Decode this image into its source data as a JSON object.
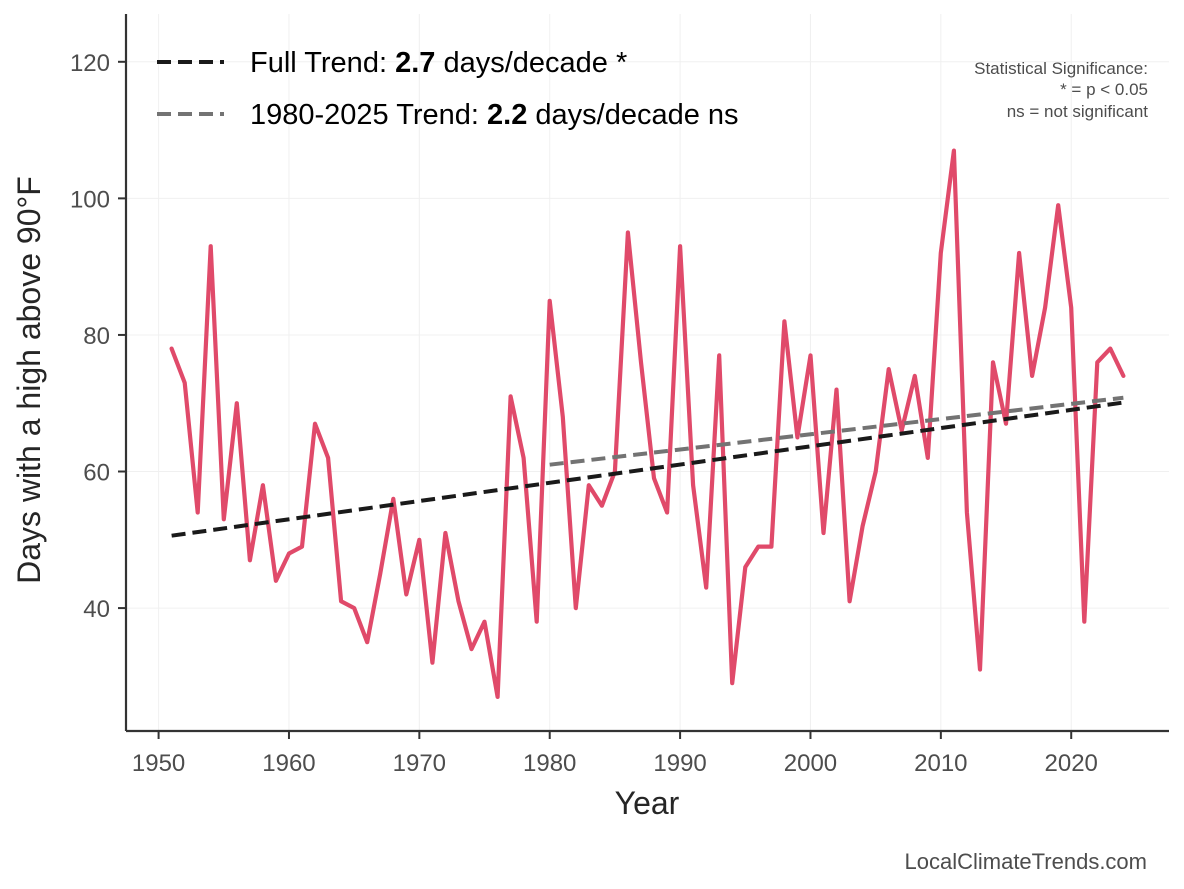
{
  "chart_data": {
    "type": "line",
    "xlabel": "Year",
    "ylabel": "Days with a high above 90°F",
    "xlim": [
      1947.5,
      2027.5
    ],
    "ylim": [
      22,
      127
    ],
    "xticks": [
      1950,
      1960,
      1970,
      1980,
      1990,
      2000,
      2010,
      2020
    ],
    "yticks": [
      40,
      60,
      80,
      100,
      120
    ],
    "grid": true,
    "series": [
      {
        "color": "#e04a6a",
        "x": [
          1951,
          1952,
          1953,
          1954,
          1955,
          1956,
          1957,
          1958,
          1959,
          1960,
          1961,
          1962,
          1963,
          1964,
          1965,
          1966,
          1967,
          1968,
          1969,
          1970,
          1971,
          1972,
          1973,
          1974,
          1975,
          1976,
          1977,
          1978,
          1979,
          1980,
          1981,
          1982,
          1983,
          1984,
          1985,
          1986,
          1987,
          1988,
          1989,
          1990,
          1991,
          1992,
          1993,
          1994,
          1995,
          1996,
          1997,
          1998,
          1999,
          2000,
          2001,
          2002,
          2003,
          2004,
          2005,
          2006,
          2007,
          2008,
          2009,
          2010,
          2011,
          2012,
          2013,
          2014,
          2015,
          2016,
          2017,
          2018,
          2019,
          2020,
          2021,
          2022,
          2023,
          2024
        ],
        "y": [
          78,
          73,
          54,
          93,
          53,
          70,
          47,
          58,
          44,
          48,
          49,
          67,
          62,
          41,
          40,
          35,
          45,
          56,
          42,
          50,
          32,
          51,
          41,
          34,
          38,
          27,
          71,
          62,
          38,
          85,
          68,
          40,
          58,
          55,
          60,
          95,
          76,
          59,
          54,
          93,
          58,
          43,
          77,
          29,
          46,
          49,
          49,
          82,
          65,
          77,
          51,
          72,
          41,
          52,
          60,
          75,
          66,
          74,
          62,
          92,
          107,
          54,
          31,
          76,
          67,
          92,
          74,
          84,
          99,
          84,
          38,
          76,
          78,
          74
        ]
      }
    ],
    "trends": [
      {
        "label": "Full Trend: ",
        "value": "2.7",
        "suffix": " days/decade *",
        "color": "#1a1a1a",
        "x": [
          1951,
          2024
        ],
        "y": [
          50.6,
          70.1
        ]
      },
      {
        "label": "1980-2025 Trend: ",
        "value": "2.2",
        "suffix": " days/decade ns",
        "color": "#737373",
        "x": [
          1980,
          2024
        ],
        "y": [
          61.0,
          70.8
        ]
      }
    ],
    "annotations": {
      "significance_title": "Statistical Significance:",
      "significance_star": "* = p < 0.05",
      "significance_ns": "ns = not significant"
    },
    "source": "LocalClimateTrends.com",
    "legend_position": "top-left"
  }
}
